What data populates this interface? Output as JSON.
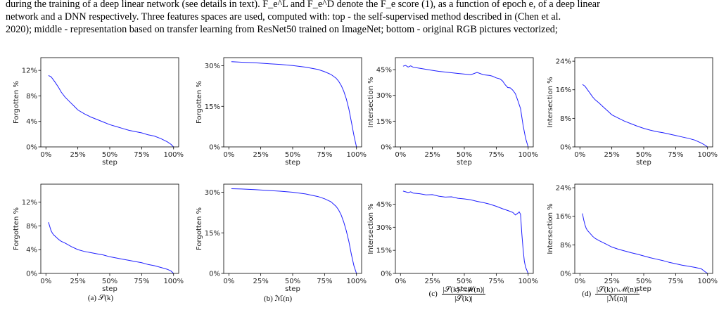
{
  "caption": {
    "line1": "during the training of a deep linear network (see details in text). F_e^L and F_e^D denote the F_e score (1), as a function of epoch e, of a deep linear",
    "line2": "network and a DNN respectively. Three features spaces are used, computed with: top - the self-supervised method described in (Chen et al.",
    "line3": "2020); middle - representation based on transfer learning from ResNet50 trained on ImageNet; bottom - original RGB pictures vectorized;"
  },
  "subcaptions": {
    "a": "(a) 𝒮(k)",
    "b": "(b) ℳ(n)",
    "c_label": "(c)",
    "c_num": "|𝒮(k)∩ℳ(n)|",
    "c_den": "|𝒮(k)|",
    "d_label": "(d)",
    "d_num": "|𝒮(k)∩ℳ(n)|",
    "d_den": "|ℳ(n)|"
  },
  "colors": {
    "line": "#1f1fff"
  },
  "chart_data": [
    {
      "type": "line",
      "xlabel": "step",
      "ylabel": "Forgotten %",
      "ylim": [
        0,
        14
      ],
      "yticks": [
        0,
        4,
        8,
        12
      ],
      "xticks": [
        0,
        25,
        50,
        75,
        100
      ],
      "x": [
        2,
        4,
        6,
        8,
        10,
        12,
        15,
        18,
        22,
        25,
        30,
        35,
        40,
        45,
        50,
        55,
        60,
        65,
        70,
        75,
        80,
        85,
        90,
        95,
        98,
        100
      ],
      "y": [
        11.2,
        11,
        10.5,
        9.9,
        9.3,
        8.6,
        7.8,
        7.2,
        6.4,
        5.8,
        5.2,
        4.7,
        4.3,
        3.9,
        3.5,
        3.2,
        2.9,
        2.6,
        2.4,
        2.2,
        1.9,
        1.7,
        1.3,
        0.8,
        0.4,
        0
      ]
    },
    {
      "type": "line",
      "xlabel": "step",
      "ylabel": "Forgotten %",
      "ylim": [
        0,
        33
      ],
      "yticks": [
        0,
        15,
        30
      ],
      "xticks": [
        0,
        25,
        50,
        75,
        100
      ],
      "x": [
        2,
        10,
        20,
        30,
        40,
        50,
        60,
        70,
        75,
        80,
        84,
        86,
        88,
        90,
        92,
        94,
        96,
        98,
        100
      ],
      "y": [
        31.5,
        31.3,
        31.1,
        30.8,
        30.5,
        30.1,
        29.5,
        28.6,
        27.8,
        26.8,
        25.4,
        24.3,
        22.7,
        20.6,
        17.8,
        14,
        9.2,
        4.2,
        0
      ]
    },
    {
      "type": "line",
      "xlabel": "step",
      "ylabel": "Intersection %",
      "ylim": [
        0,
        52
      ],
      "yticks": [
        0,
        15,
        30,
        45
      ],
      "xticks": [
        0,
        25,
        50,
        75,
        100
      ],
      "x": [
        2,
        4,
        6,
        8,
        10,
        15,
        20,
        25,
        30,
        35,
        40,
        45,
        50,
        55,
        60,
        65,
        70,
        72,
        75,
        78,
        80,
        82,
        84,
        86,
        88,
        90,
        92,
        94,
        96,
        98,
        100
      ],
      "y": [
        47,
        47.5,
        46.5,
        47.2,
        46.4,
        45.8,
        45.2,
        44.6,
        44,
        43.6,
        43.2,
        42.8,
        42.4,
        42,
        43.4,
        42,
        41.6,
        41.2,
        40.2,
        39.6,
        38.4,
        36.2,
        34.6,
        34.4,
        33,
        31,
        26.8,
        22.3,
        12.6,
        5,
        0
      ]
    },
    {
      "type": "line",
      "xlabel": "step",
      "ylabel": "Intersection %",
      "ylim": [
        0,
        25
      ],
      "yticks": [
        0,
        8,
        16,
        24
      ],
      "xticks": [
        0,
        25,
        50,
        75,
        100
      ],
      "x": [
        2,
        4,
        6,
        8,
        10,
        12,
        15,
        18,
        22,
        25,
        30,
        35,
        40,
        45,
        50,
        55,
        60,
        65,
        70,
        75,
        80,
        85,
        90,
        95,
        98,
        100
      ],
      "y": [
        17.5,
        17,
        16,
        15,
        14,
        13.2,
        12.3,
        11.3,
        10,
        9,
        8.1,
        7.2,
        6.5,
        5.8,
        5.2,
        4.7,
        4.3,
        4,
        3.6,
        3.2,
        2.8,
        2.4,
        1.9,
        1.1,
        0.5,
        0
      ]
    },
    {
      "type": "line",
      "xlabel": "step",
      "ylabel": "Forgotten %",
      "ylim": [
        0,
        15
      ],
      "yticks": [
        0,
        4,
        8,
        12
      ],
      "xticks": [
        0,
        25,
        50,
        75,
        100
      ],
      "x": [
        2,
        3,
        4,
        5,
        6,
        8,
        10,
        12,
        15,
        20,
        25,
        30,
        35,
        40,
        45,
        50,
        55,
        60,
        65,
        70,
        75,
        80,
        85,
        90,
        95,
        98,
        100
      ],
      "y": [
        8.6,
        7.9,
        7.2,
        6.8,
        6.5,
        6.1,
        5.7,
        5.4,
        5.1,
        4.5,
        4,
        3.7,
        3.5,
        3.3,
        3.1,
        2.8,
        2.6,
        2.4,
        2.2,
        2,
        1.8,
        1.5,
        1.3,
        1,
        0.7,
        0.4,
        0
      ]
    },
    {
      "type": "line",
      "xlabel": "step",
      "ylabel": "Forgotten %",
      "ylim": [
        0,
        33
      ],
      "yticks": [
        0,
        15,
        30
      ],
      "xticks": [
        0,
        25,
        50,
        75,
        100
      ],
      "x": [
        2,
        10,
        20,
        30,
        40,
        50,
        60,
        70,
        75,
        80,
        84,
        86,
        88,
        90,
        92,
        94,
        96,
        98,
        100
      ],
      "y": [
        31.3,
        31.2,
        31,
        30.7,
        30.4,
        30,
        29.4,
        28.4,
        27.6,
        26.5,
        24.8,
        23.5,
        21.6,
        19,
        15.8,
        11.8,
        7,
        2.8,
        0
      ]
    },
    {
      "type": "line",
      "xlabel": "step",
      "ylabel": "Intersection %",
      "ylim": [
        0,
        58
      ],
      "yticks": [
        0,
        15,
        30,
        45
      ],
      "xticks": [
        0,
        25,
        50,
        75,
        100
      ],
      "x": [
        2,
        4,
        6,
        8,
        10,
        15,
        20,
        25,
        30,
        35,
        40,
        45,
        50,
        55,
        60,
        65,
        70,
        75,
        80,
        85,
        88,
        90,
        92,
        93,
        94,
        95,
        96,
        97,
        98,
        100
      ],
      "y": [
        53.5,
        53,
        52.5,
        53,
        52.2,
        51.8,
        51,
        51.2,
        50.2,
        49.6,
        49.8,
        48.8,
        48.4,
        47.8,
        46.8,
        46,
        45,
        43.6,
        42,
        40.6,
        39.6,
        38,
        39.2,
        40,
        38.4,
        26,
        16,
        8,
        4,
        0
      ]
    },
    {
      "type": "line",
      "xlabel": "step",
      "ylabel": "Intersection %",
      "ylim": [
        0,
        25
      ],
      "yticks": [
        0,
        8,
        16,
        24
      ],
      "xticks": [
        0,
        25,
        50,
        75,
        100
      ],
      "x": [
        2,
        3,
        4,
        5,
        6,
        8,
        10,
        12,
        15,
        20,
        25,
        30,
        35,
        40,
        45,
        50,
        55,
        60,
        65,
        70,
        75,
        80,
        85,
        90,
        95,
        98,
        100
      ],
      "y": [
        16.8,
        15,
        13.6,
        12.6,
        12,
        11.2,
        10.4,
        9.8,
        9.2,
        8.3,
        7.4,
        6.8,
        6.3,
        5.8,
        5.4,
        4.9,
        4.4,
        4,
        3.6,
        3.1,
        2.7,
        2.3,
        2,
        1.7,
        1.3,
        0.5,
        0
      ]
    }
  ]
}
